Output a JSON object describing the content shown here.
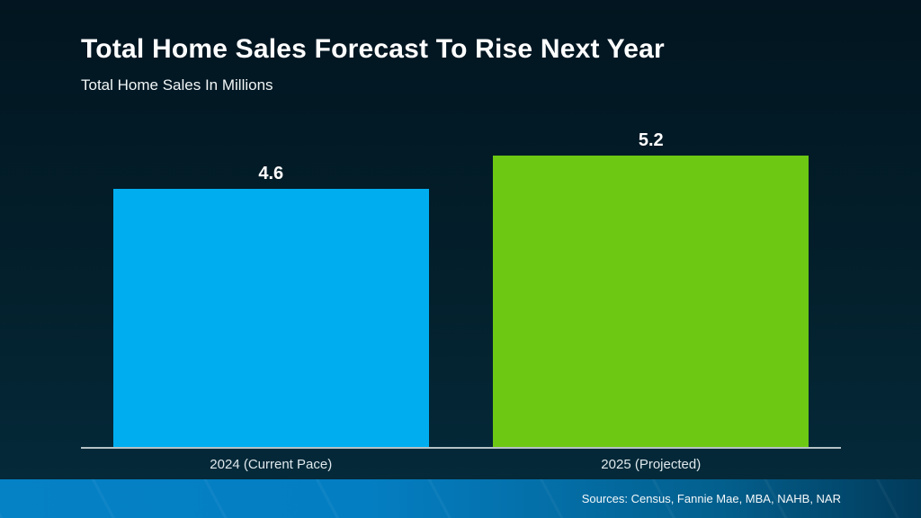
{
  "header": {
    "title": "Total Home Sales Forecast To Rise Next Year",
    "subtitle": "Total Home Sales In Millions"
  },
  "chart_data": {
    "type": "bar",
    "title": "Total Home Sales Forecast To Rise Next Year",
    "subtitle": "Total Home Sales In Millions",
    "categories": [
      "2024 (Current Pace)",
      "2025 (Projected)"
    ],
    "values": [
      4.6,
      5.2
    ],
    "value_labels": [
      "4.6",
      "5.2"
    ],
    "bar_colors": [
      "#00aeef",
      "#6cc813"
    ],
    "ylim": [
      0,
      5.2
    ],
    "grid": false,
    "legend_position": "none",
    "xlabel": "",
    "ylabel": ""
  },
  "footer": {
    "sources": "Sources: Census, Fannie Mae, MBA, NAHB, NAR"
  },
  "colors": {
    "background_top": "#021520",
    "background_bottom": "#052b3c",
    "bar_2024": "#00aeef",
    "bar_2025": "#6cc813",
    "axis_line": "#b6c1c6",
    "footer_gradient_left": "#0581c5",
    "footer_gradient_right": "#023a5a",
    "text": "#ffffff"
  }
}
